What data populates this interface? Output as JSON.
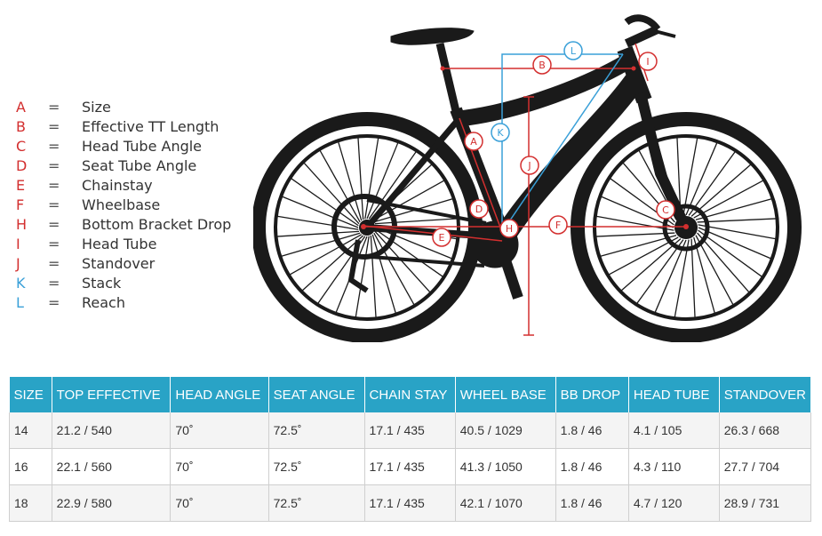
{
  "legend": [
    {
      "letter": "A",
      "eq": "=",
      "desc": "Size",
      "color": "#d32f2f"
    },
    {
      "letter": "B",
      "eq": "=",
      "desc": "Effective TT Length",
      "color": "#d32f2f"
    },
    {
      "letter": "C",
      "eq": "=",
      "desc": "Head Tube Angle",
      "color": "#d32f2f"
    },
    {
      "letter": "D",
      "eq": "=",
      "desc": "Seat Tube Angle",
      "color": "#d32f2f"
    },
    {
      "letter": "E",
      "eq": "=",
      "desc": "Chainstay",
      "color": "#d32f2f"
    },
    {
      "letter": "F",
      "eq": "=",
      "desc": "Wheelbase",
      "color": "#d32f2f"
    },
    {
      "letter": "H",
      "eq": "=",
      "desc": "Bottom Bracket Drop",
      "color": "#d32f2f"
    },
    {
      "letter": "I",
      "eq": "=",
      "desc": "Head Tube",
      "color": "#d32f2f"
    },
    {
      "letter": "J",
      "eq": "=",
      "desc": "Standover",
      "color": "#d32f2f"
    },
    {
      "letter": "K",
      "eq": "=",
      "desc": "Stack",
      "color": "#3aa0d8"
    },
    {
      "letter": "L",
      "eq": "=",
      "desc": "Reach",
      "color": "#3aa0d8"
    }
  ],
  "diagram_labels": {
    "a": "A",
    "b": "B",
    "c": "C",
    "d": "D",
    "e": "E",
    "f": "F",
    "h": "H",
    "i": "I",
    "j": "J",
    "k": "K",
    "l": "L"
  },
  "colors": {
    "measure_red": "#d32f2f",
    "measure_blue": "#3aa0d8",
    "bike": "#1a1a1a",
    "table_header": "#29a3c6"
  },
  "table": {
    "headers": [
      "SIZE",
      "TOP EFFECTIVE",
      "HEAD ANGLE",
      "SEAT ANGLE",
      "CHAIN STAY",
      "WHEEL BASE",
      "BB DROP",
      "HEAD TUBE",
      "STANDOVER"
    ],
    "rows": [
      [
        "14",
        "21.2 / 540",
        "70˚",
        "72.5˚",
        "17.1 / 435",
        "40.5 / 1029",
        "1.8 / 46",
        "4.1 / 105",
        "26.3 / 668"
      ],
      [
        "16",
        "22.1 / 560",
        "70˚",
        "72.5˚",
        "17.1 / 435",
        "41.3 / 1050",
        "1.8 / 46",
        "4.3 / 110",
        "27.7 / 704"
      ],
      [
        "18",
        "22.9 / 580",
        "70˚",
        "72.5˚",
        "17.1 / 435",
        "42.1 / 1070",
        "1.8 / 46",
        "4.7 / 120",
        "28.9 / 731"
      ]
    ]
  }
}
